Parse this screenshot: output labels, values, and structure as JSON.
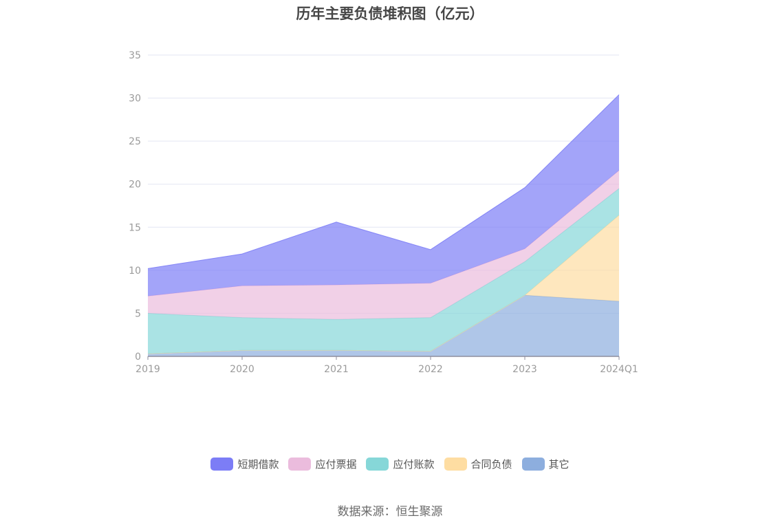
{
  "chart_data": {
    "type": "area",
    "stacked": true,
    "title": "历年主要负债堆积图（亿元）",
    "categories": [
      "2019",
      "2020",
      "2021",
      "2022",
      "2023",
      "2024Q1"
    ],
    "ylim": [
      0,
      35
    ],
    "yticks": [
      0,
      5,
      10,
      15,
      20,
      25,
      30,
      35
    ],
    "grid": true,
    "legend_position": "bottom",
    "series": [
      {
        "name": "其它",
        "color": "#8daede",
        "values": [
          0.3,
          0.7,
          0.7,
          0.6,
          7.1,
          6.4
        ]
      },
      {
        "name": "合同负债",
        "color": "#fedda2",
        "values": [
          0.0,
          0.0,
          0.0,
          0.0,
          0.0,
          10.0
        ]
      },
      {
        "name": "应付账款",
        "color": "#86d7d8",
        "values": [
          4.7,
          3.8,
          3.6,
          3.9,
          3.9,
          3.1
        ]
      },
      {
        "name": "应付票据",
        "color": "#ebbcdd",
        "values": [
          2.0,
          3.7,
          4.0,
          4.0,
          1.5,
          2.1
        ]
      },
      {
        "name": "短期借款",
        "color": "#7c7df6",
        "values": [
          3.2,
          3.7,
          7.3,
          3.9,
          7.1,
          8.8
        ]
      }
    ],
    "legend_order": [
      "短期借款",
      "应付票据",
      "应付账款",
      "合同负债",
      "其它"
    ]
  },
  "source_note": "数据来源：恒生聚源"
}
